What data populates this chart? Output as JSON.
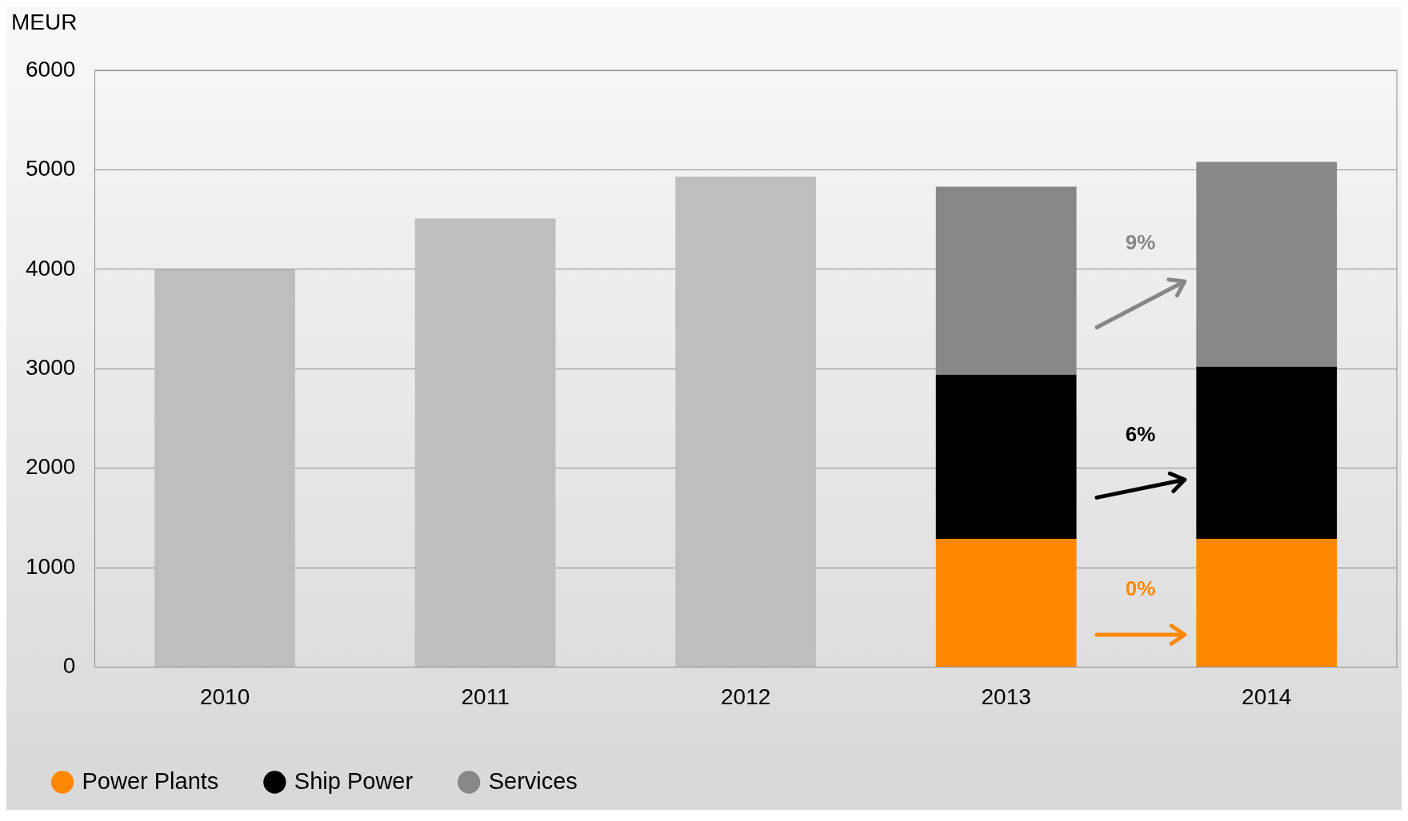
{
  "chart_data": {
    "type": "bar",
    "ylabel": "MEUR",
    "categories": [
      "2010",
      "2011",
      "2012",
      "2013",
      "2014"
    ],
    "stacked": true,
    "ylim": [
      0,
      6000
    ],
    "yticks": [
      0,
      1000,
      2000,
      3000,
      4000,
      5000,
      6000
    ],
    "grid": "y",
    "legend": "bottom left",
    "series": [
      {
        "color": "#bebebe",
        "values": [
          4000,
          4510,
          4930,
          null,
          null
        ]
      },
      {
        "name": "Power Plants",
        "color": "#ff8800",
        "values": [
          null,
          null,
          null,
          1290,
          1290
        ]
      },
      {
        "name": "Ship Power",
        "color": "#000000",
        "values": [
          null,
          null,
          null,
          1650,
          1730
        ]
      },
      {
        "name": "Services",
        "color": "#878787",
        "values": [
          null,
          null,
          null,
          1890,
          2060
        ]
      }
    ],
    "annotations": [
      "0%",
      "6%",
      "9%"
    ]
  }
}
